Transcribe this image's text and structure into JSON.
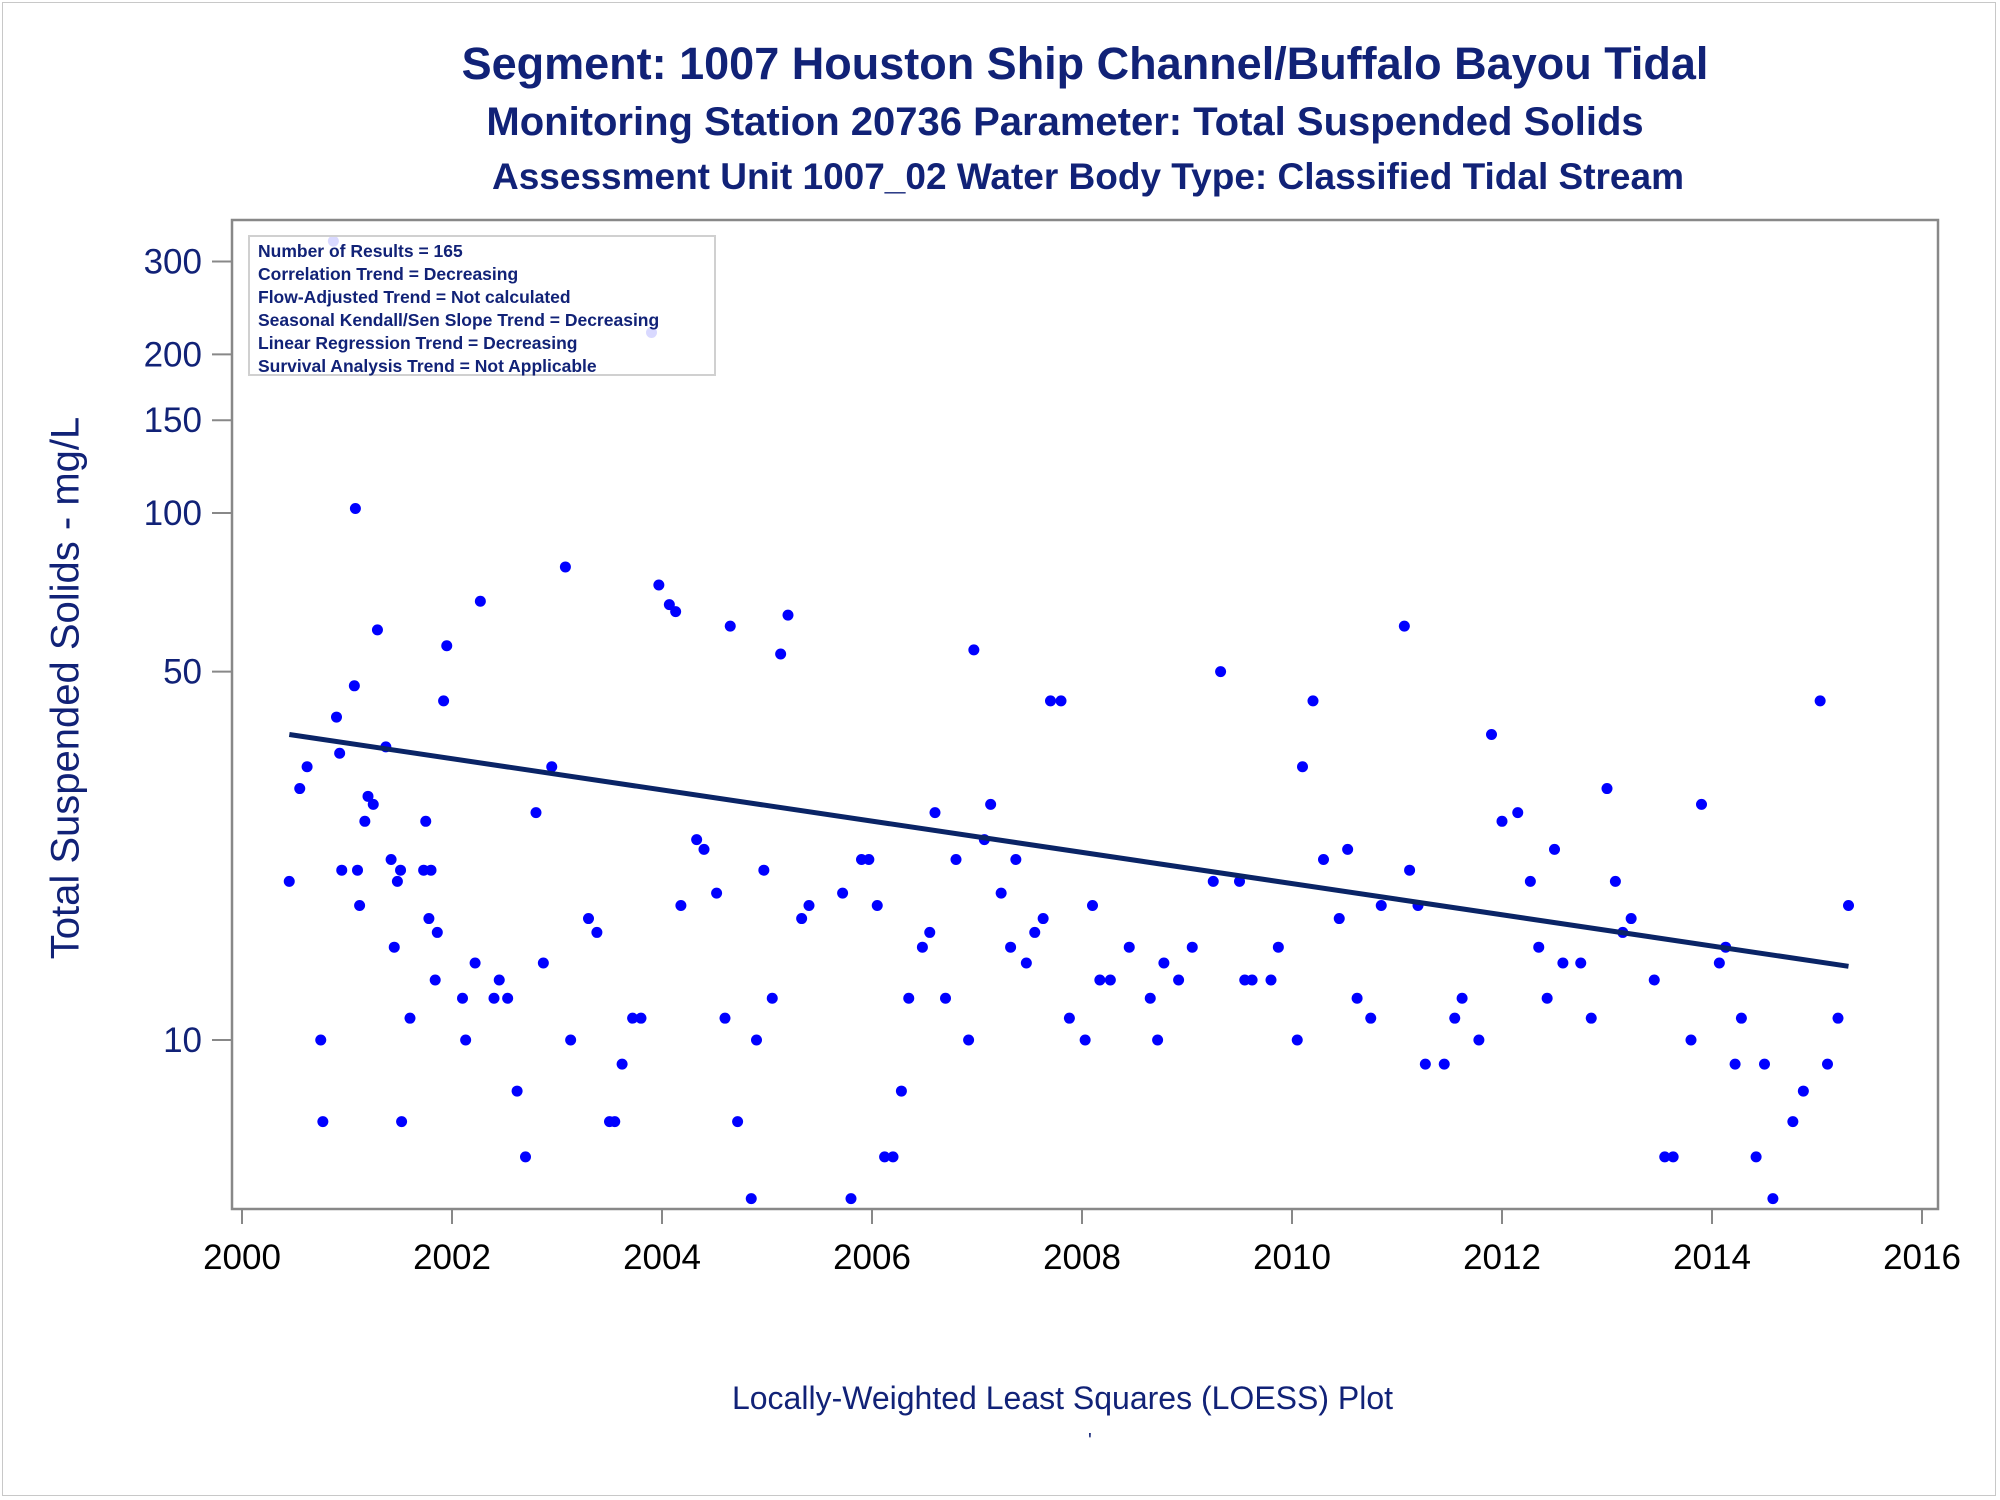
{
  "titles": {
    "line1": "Segment: 1007  Houston Ship Channel/Buffalo Bayou Tidal",
    "line2": "Monitoring Station 20736 Parameter: Total Suspended Solids",
    "line3": "Assessment Unit 1007_02   Water Body Type: Classified Tidal Stream"
  },
  "legend": [
    "Number of Results = 165",
    "Correlation Trend = Decreasing",
    "Flow-Adjusted Trend = Not calculated",
    "Seasonal Kendall/Sen Slope Trend = Decreasing",
    "Linear Regression Trend = Decreasing",
    "Survival Analysis Trend = Not Applicable"
  ],
  "footnote": "Locally-Weighted Least Squares (LOESS) Plot",
  "footnote_mark": "'",
  "colors": {
    "text": "#112277",
    "points": "#0000ff",
    "trend": "#0a2466",
    "axis": "#888888"
  },
  "chart_data": {
    "type": "scatter",
    "title": "Segment: 1007  Houston Ship Channel/Buffalo Bayou Tidal",
    "xlabel": "",
    "ylabel": "Total Suspended Solids - mg/L",
    "x_ticks": [
      2000,
      2002,
      2004,
      2006,
      2008,
      2010,
      2012,
      2014,
      2016
    ],
    "y_ticks": [
      10,
      50,
      100,
      150,
      200,
      300
    ],
    "y_scale": "log",
    "xlim": [
      2000,
      2016
    ],
    "ylim": [
      4.2,
      350
    ],
    "grid": false,
    "legend_position": "top-left",
    "trend_line": {
      "name": "LOESS",
      "points": [
        [
          2000.45,
          38
        ],
        [
          2015.3,
          13.8
        ]
      ]
    },
    "points": [
      [
        2000.45,
        20
      ],
      [
        2000.55,
        30
      ],
      [
        2000.62,
        33
      ],
      [
        2000.75,
        10
      ],
      [
        2000.77,
        7
      ],
      [
        2000.87,
        328
      ],
      [
        2000.9,
        41
      ],
      [
        2000.93,
        35
      ],
      [
        2000.95,
        21
      ],
      [
        2001.07,
        47
      ],
      [
        2001.08,
        102
      ],
      [
        2001.1,
        21
      ],
      [
        2001.12,
        18
      ],
      [
        2001.17,
        26
      ],
      [
        2001.2,
        29
      ],
      [
        2001.25,
        28
      ],
      [
        2001.29,
        60
      ],
      [
        2001.37,
        36
      ],
      [
        2001.42,
        22
      ],
      [
        2001.45,
        15
      ],
      [
        2001.48,
        20
      ],
      [
        2001.51,
        21
      ],
      [
        2001.52,
        7
      ],
      [
        2001.6,
        11
      ],
      [
        2001.73,
        21
      ],
      [
        2001.75,
        26
      ],
      [
        2001.78,
        17
      ],
      [
        2001.8,
        21
      ],
      [
        2001.84,
        13
      ],
      [
        2001.86,
        16
      ],
      [
        2001.92,
        44
      ],
      [
        2001.95,
        56
      ],
      [
        2002.1,
        12
      ],
      [
        2002.13,
        10
      ],
      [
        2002.22,
        14
      ],
      [
        2002.27,
        68
      ],
      [
        2002.4,
        12
      ],
      [
        2002.45,
        13
      ],
      [
        2002.53,
        12
      ],
      [
        2002.62,
        8
      ],
      [
        2002.7,
        6
      ],
      [
        2002.8,
        27
      ],
      [
        2002.87,
        14
      ],
      [
        2002.95,
        33
      ],
      [
        2003.08,
        79
      ],
      [
        2003.13,
        10
      ],
      [
        2003.3,
        17
      ],
      [
        2003.38,
        16
      ],
      [
        2003.5,
        7
      ],
      [
        2003.55,
        7
      ],
      [
        2003.62,
        9
      ],
      [
        2003.72,
        11
      ],
      [
        2003.8,
        11
      ],
      [
        2003.9,
        220
      ],
      [
        2003.97,
        73
      ],
      [
        2004.07,
        67
      ],
      [
        2004.13,
        65
      ],
      [
        2004.18,
        18
      ],
      [
        2004.33,
        24
      ],
      [
        2004.4,
        23
      ],
      [
        2004.52,
        19
      ],
      [
        2004.6,
        11
      ],
      [
        2004.65,
        61
      ],
      [
        2004.72,
        7
      ],
      [
        2004.85,
        5
      ],
      [
        2004.9,
        10
      ],
      [
        2004.97,
        21
      ],
      [
        2005.05,
        12
      ],
      [
        2005.13,
        54
      ],
      [
        2005.2,
        64
      ],
      [
        2005.33,
        17
      ],
      [
        2005.4,
        18
      ],
      [
        2005.72,
        19
      ],
      [
        2005.8,
        5
      ],
      [
        2005.9,
        22
      ],
      [
        2005.97,
        22
      ],
      [
        2006.05,
        18
      ],
      [
        2006.12,
        6
      ],
      [
        2006.2,
        6
      ],
      [
        2006.28,
        8
      ],
      [
        2006.35,
        12
      ],
      [
        2006.48,
        15
      ],
      [
        2006.55,
        16
      ],
      [
        2006.6,
        27
      ],
      [
        2006.7,
        12
      ],
      [
        2006.8,
        22
      ],
      [
        2006.92,
        10
      ],
      [
        2006.97,
        55
      ],
      [
        2007.07,
        24
      ],
      [
        2007.13,
        28
      ],
      [
        2007.23,
        19
      ],
      [
        2007.32,
        15
      ],
      [
        2007.37,
        22
      ],
      [
        2007.47,
        14
      ],
      [
        2007.55,
        16
      ],
      [
        2007.63,
        17
      ],
      [
        2007.7,
        44
      ],
      [
        2007.8,
        44
      ],
      [
        2007.88,
        11
      ],
      [
        2008.03,
        10
      ],
      [
        2008.1,
        18
      ],
      [
        2008.17,
        13
      ],
      [
        2008.27,
        13
      ],
      [
        2008.45,
        15
      ],
      [
        2008.65,
        12
      ],
      [
        2008.72,
        10
      ],
      [
        2008.78,
        14
      ],
      [
        2008.92,
        13
      ],
      [
        2009.05,
        15
      ],
      [
        2009.25,
        20
      ],
      [
        2009.32,
        50
      ],
      [
        2009.5,
        20
      ],
      [
        2009.55,
        13
      ],
      [
        2009.62,
        13
      ],
      [
        2009.8,
        13
      ],
      [
        2009.87,
        15
      ],
      [
        2010.05,
        10
      ],
      [
        2010.1,
        33
      ],
      [
        2010.2,
        44
      ],
      [
        2010.3,
        22
      ],
      [
        2010.45,
        17
      ],
      [
        2010.53,
        23
      ],
      [
        2010.62,
        12
      ],
      [
        2010.75,
        11
      ],
      [
        2010.85,
        18
      ],
      [
        2011.07,
        61
      ],
      [
        2011.12,
        21
      ],
      [
        2011.2,
        18
      ],
      [
        2011.27,
        9
      ],
      [
        2011.45,
        9
      ],
      [
        2011.55,
        11
      ],
      [
        2011.62,
        12
      ],
      [
        2011.78,
        10
      ],
      [
        2011.9,
        38
      ],
      [
        2012.0,
        26
      ],
      [
        2012.15,
        27
      ],
      [
        2012.27,
        20
      ],
      [
        2012.35,
        15
      ],
      [
        2012.43,
        12
      ],
      [
        2012.5,
        23
      ],
      [
        2012.58,
        14
      ],
      [
        2012.75,
        14
      ],
      [
        2012.85,
        11
      ],
      [
        2013.0,
        30
      ],
      [
        2013.08,
        20
      ],
      [
        2013.15,
        16
      ],
      [
        2013.23,
        17
      ],
      [
        2013.45,
        13
      ],
      [
        2013.55,
        6
      ],
      [
        2013.63,
        6
      ],
      [
        2013.8,
        10
      ],
      [
        2013.9,
        28
      ],
      [
        2014.07,
        14
      ],
      [
        2014.13,
        15
      ],
      [
        2014.22,
        9
      ],
      [
        2014.28,
        11
      ],
      [
        2014.42,
        6
      ],
      [
        2014.5,
        9
      ],
      [
        2014.58,
        5
      ],
      [
        2014.77,
        7
      ],
      [
        2014.87,
        8
      ],
      [
        2015.03,
        44
      ],
      [
        2015.1,
        9
      ],
      [
        2015.2,
        11
      ],
      [
        2015.3,
        18
      ]
    ]
  }
}
